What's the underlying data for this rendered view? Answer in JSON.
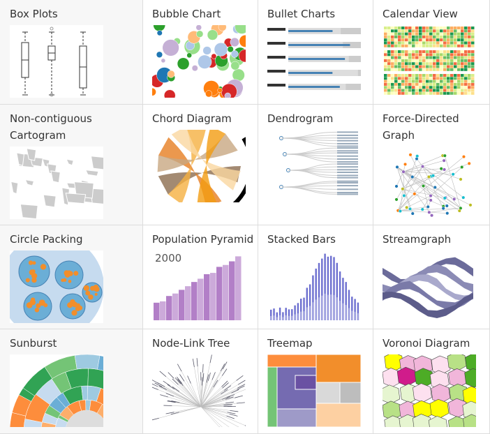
{
  "tiles": [
    {
      "title": "Box Plots"
    },
    {
      "title": "Bubble Chart"
    },
    {
      "title": "Bullet Charts"
    },
    {
      "title": "Calendar View"
    },
    {
      "title": "Non-contiguous Cartogram"
    },
    {
      "title": "Chord Diagram"
    },
    {
      "title": "Dendrogram"
    },
    {
      "title": "Force-Directed Graph"
    },
    {
      "title": "Circle Packing"
    },
    {
      "title": "Population Pyramid",
      "caption": "2000"
    },
    {
      "title": "Stacked Bars"
    },
    {
      "title": "Streamgraph"
    },
    {
      "title": "Sunburst"
    },
    {
      "title": "Node-Link Tree"
    },
    {
      "title": "Treemap"
    },
    {
      "title": "Voronoi Diagram"
    }
  ]
}
